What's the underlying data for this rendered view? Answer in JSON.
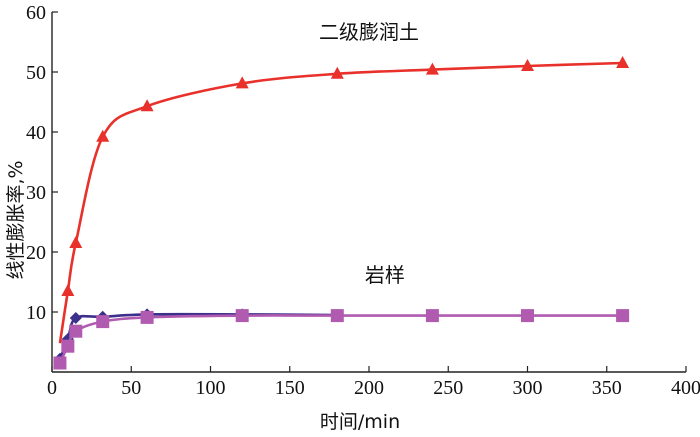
{
  "chart_data": {
    "type": "line",
    "xlabel": "时间/min",
    "ylabel": "线性膨胀率,%",
    "xlim": [
      0,
      400
    ],
    "ylim": [
      0,
      60
    ],
    "xticks": [
      0,
      50,
      100,
      150,
      200,
      250,
      300,
      350,
      400
    ],
    "yticks": [
      10,
      20,
      30,
      40,
      50,
      60
    ],
    "grid": false,
    "annotations": [
      {
        "text": "二级膨润土",
        "x": 200,
        "y": 55.5
      },
      {
        "text": "岩样",
        "x": 210,
        "y": 15
      }
    ],
    "series": [
      {
        "marker": "triangle",
        "color": "#e8312a",
        "x": [
          10,
          15,
          32,
          60,
          120,
          180,
          240,
          300,
          360
        ],
        "y": [
          13.5,
          21.5,
          39.2,
          44.3,
          48.1,
          49.7,
          50.4,
          51.0,
          51.5
        ]
      },
      {
        "marker": "diamond",
        "color": "#3d2f8c",
        "x": [
          5,
          10,
          15,
          32,
          60,
          120,
          180
        ],
        "y": [
          2.2,
          5.5,
          9.0,
          9.2,
          9.6,
          9.6,
          9.5
        ]
      },
      {
        "marker": "square",
        "color": "#b05bb0",
        "x": [
          5,
          10,
          15,
          32,
          60,
          120,
          180,
          240,
          300,
          360
        ],
        "y": [
          1.5,
          4.3,
          6.8,
          8.4,
          9.1,
          9.4,
          9.4,
          9.4,
          9.4,
          9.4
        ]
      }
    ]
  }
}
